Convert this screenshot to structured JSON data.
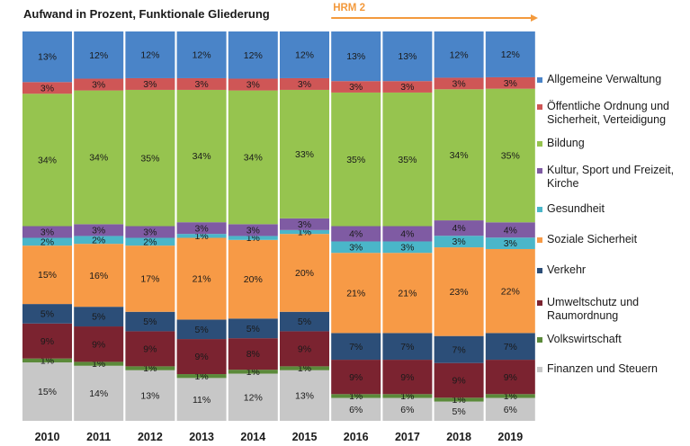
{
  "chart_data": {
    "type": "bar",
    "stacked": true,
    "percent": true,
    "title": "Aufwand in Prozent, Funktionale Gliederung",
    "annotation": {
      "text": "HRM 2",
      "color": "#f39a3d",
      "from_category": "2016"
    },
    "categories": [
      "2010",
      "2011",
      "2012",
      "2013",
      "2014",
      "2015",
      "2016",
      "2017",
      "2018",
      "2019"
    ],
    "series": [
      {
        "name": "Finanzen und Steuern",
        "color": "#c7c7c7",
        "values": [
          15,
          14,
          13,
          11,
          12,
          13,
          6,
          6,
          5,
          6
        ]
      },
      {
        "name": "Volkswirtschaft",
        "color": "#5b8a3a",
        "values": [
          1,
          1,
          1,
          1,
          1,
          1,
          1,
          1,
          1,
          1
        ]
      },
      {
        "name": "Umweltschutz und Raumordnung",
        "color": "#7b2330",
        "values": [
          9,
          9,
          9,
          9,
          8,
          9,
          9,
          9,
          9,
          9
        ]
      },
      {
        "name": "Verkehr",
        "color": "#2c4e78",
        "values": [
          5,
          5,
          5,
          5,
          5,
          5,
          7,
          7,
          7,
          7
        ]
      },
      {
        "name": "Soziale Sicherheit",
        "color": "#f79a46",
        "values": [
          15,
          16,
          17,
          21,
          20,
          20,
          21,
          21,
          23,
          22
        ]
      },
      {
        "name": "Gesundheit",
        "color": "#4ab6c9",
        "values": [
          2,
          2,
          2,
          1,
          1,
          1,
          3,
          3,
          3,
          3
        ]
      },
      {
        "name": "Kultur, Sport und Freizeit, Kirche",
        "color": "#7f5ba3",
        "values": [
          3,
          3,
          3,
          3,
          3,
          3,
          4,
          4,
          4,
          4
        ]
      },
      {
        "name": "Bildung",
        "color": "#96c44f",
        "values": [
          34,
          34,
          35,
          34,
          34,
          33,
          35,
          35,
          34,
          35
        ]
      },
      {
        "name": "Öffentliche Ordnung und Sicherheit, Verteidigung",
        "color": "#cf5656",
        "values": [
          3,
          3,
          3,
          3,
          3,
          3,
          3,
          3,
          3,
          3
        ]
      },
      {
        "name": "Allgemeine Verwaltung",
        "color": "#4a84c8",
        "values": [
          13,
          12,
          12,
          12,
          12,
          12,
          13,
          13,
          12,
          12
        ]
      }
    ],
    "legend": {
      "placement": "right",
      "items": [
        {
          "lines": [
            "Allgemeine Verwaltung"
          ],
          "color": "#4a84c8"
        },
        {
          "lines": [
            "Öffentliche Ordnung und",
            "Sicherheit, Verteidigung"
          ],
          "color": "#cf5656"
        },
        {
          "lines": [
            "Bildung"
          ],
          "color": "#96c44f"
        },
        {
          "lines": [
            "Kultur, Sport und Freizeit,",
            "Kirche"
          ],
          "color": "#7f5ba3"
        },
        {
          "lines": [
            "Gesundheit"
          ],
          "color": "#4ab6c9"
        },
        {
          "lines": [
            "Soziale Sicherheit"
          ],
          "color": "#f79a46"
        },
        {
          "lines": [
            "Verkehr"
          ],
          "color": "#2c4e78"
        },
        {
          "lines": [
            "Umweltschutz und",
            "Raumordnung"
          ],
          "color": "#7b2330"
        },
        {
          "lines": [
            "Volkswirtschaft"
          ],
          "color": "#5b8a3a"
        },
        {
          "lines": [
            "Finanzen und Steuern"
          ],
          "color": "#c7c7c7"
        }
      ]
    },
    "grid": false
  }
}
